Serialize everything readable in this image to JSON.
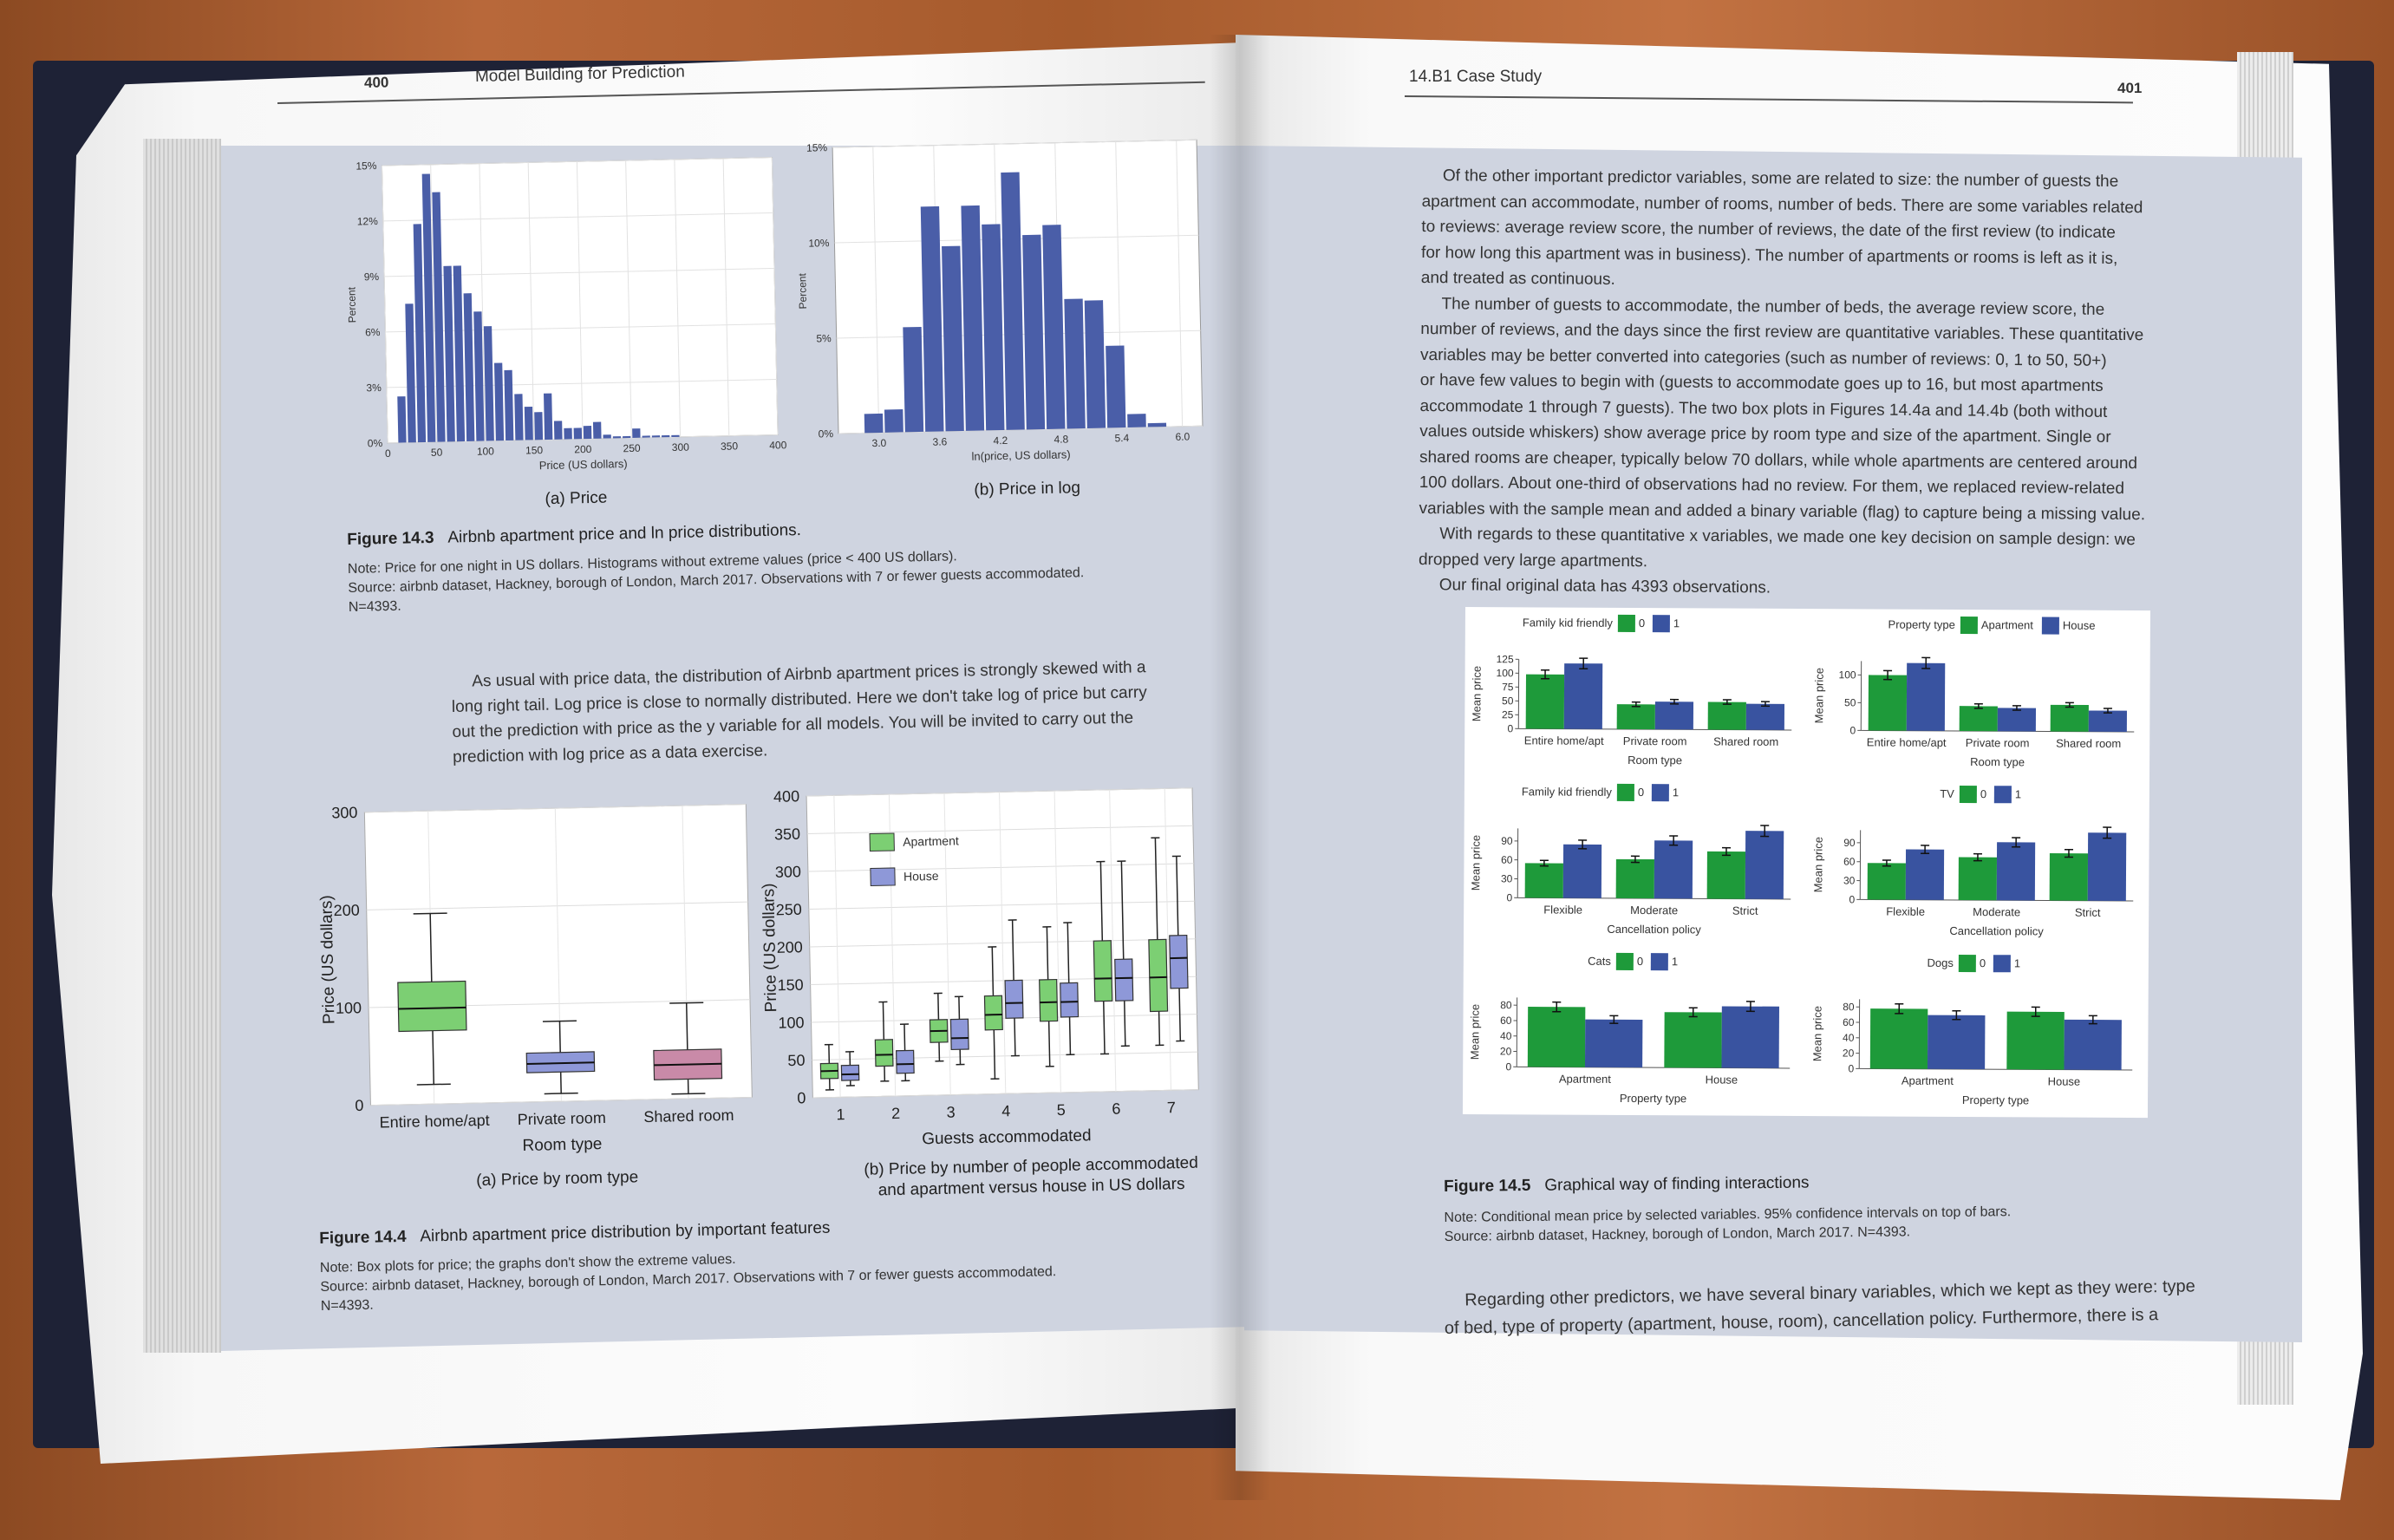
{
  "left_page": {
    "page_number": "400",
    "running_head": "Model Building for Prediction",
    "fig143_caption_label": "Figure 14.3",
    "fig143_caption": "Airbnb apartment price and ln price distributions.",
    "fig143_note": "Note: Price for one night in US dollars. Histograms without extreme values (price < 400 US dollars).",
    "fig143_source1": "Source: airbnb dataset, Hackney, borough of London, March 2017. Observations with 7 or fewer guests accommodated.",
    "fig143_source2": "N=4393.",
    "panel_a_label": "(a) Price",
    "panel_b_label": "(b) Price in log",
    "para_lines": [
      "As usual with price data, the distribution of Airbnb apartment prices is strongly skewed with a",
      "long right tail. Log price is close to normally distributed. Here we don't take log of price but carry",
      "out the prediction with price as the y variable for all models. You will be invited to carry out the",
      "prediction with log price as a data exercise."
    ],
    "fig144a_label": "(a) Price by room type",
    "fig144b_label1": "(b) Price by number of people accommodated",
    "fig144b_label2": "and apartment versus house in US dollars",
    "fig144_caption_label": "Figure 14.4",
    "fig144_caption": "Airbnb apartment price distribution by important features",
    "fig144_note": "Note: Box plots for price; the graphs don't show the extreme values.",
    "fig144_source1": "Source: airbnb dataset, Hackney, borough of London, March 2017. Observations with 7 or fewer guests accommodated.",
    "fig144_source2": "N=4393."
  },
  "right_page": {
    "page_number": "401",
    "running_head": "14.B1  Case Study",
    "para_lines": [
      "Of the other important predictor variables, some are related to size: the number of guests the",
      "apartment can accommodate, number of rooms, number of beds. There are some variables related",
      "to reviews: average review score, the number of reviews, the date of the first review (to indicate",
      "for how long this apartment was in business). The number of apartments or rooms is left as it is,",
      "and treated as continuous.",
      "The number of guests to accommodate, the number of beds, the average review score, the",
      "number of reviews, and the days since the first review are quantitative variables. These quantitative",
      "variables may be better converted into categories (such as number of reviews: 0, 1 to 50, 50+)",
      "or have few values to begin with (guests to accommodate goes up to 16, but most apartments",
      "accommodate 1 through 7 guests). The two box plots in Figures 14.4a and 14.4b (both without",
      "values outside whiskers) show average price by room type and size of the apartment. Single or",
      "shared rooms are cheaper, typically below 70 dollars, while whole apartments are centered around",
      "100 dollars. About one-third of observations had no review. For them, we replaced review-related",
      "variables with the sample mean and added a binary variable (flag) to capture being a missing value.",
      "With regards to these quantitative x variables, we made one key decision on sample design: we",
      "dropped very large apartments.",
      "Our final original data has 4393 observations."
    ],
    "fig145_caption_label": "Figure 14.5",
    "fig145_caption": "Graphical way of finding interactions",
    "fig145_note": "Note: Conditional mean price by selected variables. 95% confidence intervals on top of bars.",
    "fig145_source": "Source: airbnb dataset, Hackney, borough of London, March 2017. N=4393.",
    "bottom_lines": [
      "Regarding other predictors, we have several binary variables, which we kept as they were: type",
      "of bed, type of property (apartment, house, room), cancellation policy. Furthermore, there is a"
    ]
  },
  "colors": {
    "hist_bar": "#4a5ea8",
    "green": "#1e9a3a",
    "blue": "#3953a0",
    "box_green": "#7ccf73",
    "box_blue": "#8e98d8",
    "box_pink": "#c98aa8"
  },
  "chart_data": [
    {
      "type": "bar",
      "title": "",
      "xlabel": "Price (US dollars)",
      "ylabel": "Percent",
      "xlim": [
        0,
        400
      ],
      "ylim": [
        0,
        15
      ],
      "x_ticks": [
        "0",
        "50",
        "100",
        "150",
        "200",
        "250",
        "300",
        "350",
        "400"
      ],
      "y_ticks": [
        "0%",
        "3%",
        "6%",
        "9%",
        "12%",
        "15%"
      ],
      "bin_starts": [
        10,
        20,
        30,
        40,
        50,
        60,
        70,
        80,
        90,
        100,
        110,
        120,
        130,
        140,
        150,
        160,
        170,
        180,
        190,
        200,
        210,
        220,
        230,
        240,
        250,
        260,
        270,
        280,
        290
      ],
      "values": [
        2.5,
        7.5,
        11.8,
        14.5,
        13.5,
        9.5,
        9.5,
        8.0,
        7.0,
        6.2,
        4.2,
        3.8,
        2.5,
        1.8,
        1.5,
        2.5,
        1.0,
        0.6,
        0.6,
        0.7,
        0.9,
        0.2,
        0.1,
        0.1,
        0.5,
        0.1,
        0.1,
        0.1,
        0.1
      ]
    },
    {
      "type": "bar",
      "title": "",
      "xlabel": "ln(price, US dollars)",
      "ylabel": "Percent",
      "xlim": [
        2.6,
        6.2
      ],
      "ylim": [
        0,
        15
      ],
      "x_ticks": [
        "3.0",
        "3.6",
        "4.2",
        "4.8",
        "5.4",
        "6.0"
      ],
      "y_ticks": [
        "0%",
        "5%",
        "10%",
        "15%"
      ],
      "bin_starts": [
        2.85,
        3.05,
        3.25,
        3.45,
        3.65,
        3.85,
        4.05,
        4.25,
        4.45,
        4.65,
        4.85,
        5.05,
        5.25,
        5.45,
        5.65
      ],
      "values": [
        1.0,
        1.2,
        5.5,
        11.8,
        9.7,
        11.8,
        10.8,
        13.5,
        10.2,
        10.7,
        6.8,
        6.7,
        4.3,
        0.7,
        0.2
      ]
    },
    {
      "type": "box",
      "xlabel": "Room type",
      "ylabel": "Price (US dollars)",
      "ylim": [
        0,
        300
      ],
      "y_ticks": [
        "0",
        "100",
        "200",
        "300"
      ],
      "categories": [
        "Entire home/apt",
        "Private room",
        "Shared room"
      ],
      "boxes": [
        {
          "low": 20,
          "q1": 75,
          "median": 98,
          "q3": 125,
          "high": 195
        },
        {
          "low": 8,
          "q1": 30,
          "median": 39,
          "q3": 50,
          "high": 82
        },
        {
          "low": 5,
          "q1": 20,
          "median": 35,
          "q3": 50,
          "high": 98
        }
      ]
    },
    {
      "type": "box",
      "xlabel": "Guests accommodated",
      "ylabel": "Price (US dollars)",
      "ylim": [
        0,
        400
      ],
      "y_ticks": [
        "0",
        "50",
        "100",
        "150",
        "200",
        "250",
        "300",
        "350",
        "400"
      ],
      "categories": [
        "1",
        "2",
        "3",
        "4",
        "5",
        "6",
        "7"
      ],
      "legend": [
        "Apartment",
        "House"
      ],
      "apartment": [
        {
          "low": 10,
          "q1": 25,
          "median": 35,
          "q3": 45,
          "high": 70
        },
        {
          "low": 20,
          "q1": 40,
          "median": 55,
          "q3": 75,
          "high": 125
        },
        {
          "low": 45,
          "q1": 70,
          "median": 85,
          "q3": 100,
          "high": 135
        },
        {
          "low": 20,
          "q1": 85,
          "median": 105,
          "q3": 130,
          "high": 195
        },
        {
          "low": 35,
          "q1": 95,
          "median": 120,
          "q3": 150,
          "high": 220
        },
        {
          "low": 50,
          "q1": 120,
          "median": 150,
          "q3": 200,
          "high": 305
        },
        {
          "low": 60,
          "q1": 105,
          "median": 150,
          "q3": 200,
          "high": 335
        }
      ],
      "house": [
        {
          "low": 15,
          "q1": 22,
          "median": 30,
          "q3": 42,
          "high": 60
        },
        {
          "low": 20,
          "q1": 30,
          "median": 42,
          "q3": 60,
          "high": 95
        },
        {
          "low": 40,
          "q1": 60,
          "median": 75,
          "q3": 100,
          "high": 130
        },
        {
          "low": 50,
          "q1": 100,
          "median": 120,
          "q3": 150,
          "high": 230
        },
        {
          "low": 50,
          "q1": 100,
          "median": 120,
          "q3": 145,
          "high": 225
        },
        {
          "low": 60,
          "q1": 120,
          "median": 150,
          "q3": 175,
          "high": 305
        },
        {
          "low": 65,
          "q1": 135,
          "median": 175,
          "q3": 205,
          "high": 310
        }
      ]
    },
    {
      "type": "bar",
      "legend_title": "Family kid friendly",
      "legend": [
        "0",
        "1"
      ],
      "xlabel": "Room type",
      "ylabel": "Mean price",
      "ylim": [
        0,
        125
      ],
      "y_ticks": [
        "0",
        "25",
        "50",
        "75",
        "100",
        "125"
      ],
      "categories": [
        "Entire home/apt",
        "Private room",
        "Shared room"
      ],
      "series": [
        {
          "name": "0",
          "values": [
            98,
            45,
            50
          ]
        },
        {
          "name": "1",
          "values": [
            118,
            50,
            47
          ]
        }
      ]
    },
    {
      "type": "bar",
      "legend_title": "Property type",
      "legend": [
        "Apartment",
        "House"
      ],
      "xlabel": "Room type",
      "ylabel": "Mean price",
      "ylim": [
        0,
        125
      ],
      "y_ticks": [
        "0",
        "50",
        "100"
      ],
      "categories": [
        "Entire home/apt",
        "Private room",
        "Shared room"
      ],
      "series": [
        {
          "name": "Apartment",
          "values": [
            100,
            45,
            48
          ]
        },
        {
          "name": "House",
          "values": [
            122,
            42,
            38
          ]
        }
      ]
    },
    {
      "type": "bar",
      "legend_title": "Family kid friendly",
      "legend": [
        "0",
        "1"
      ],
      "xlabel": "Cancellation policy",
      "ylabel": "Mean price",
      "ylim": [
        0,
        110
      ],
      "y_ticks": [
        "0",
        "30",
        "60",
        "90"
      ],
      "categories": [
        "Flexible",
        "Moderate",
        "Strict"
      ],
      "series": [
        {
          "name": "0",
          "values": [
            55,
            62,
            75
          ]
        },
        {
          "name": "1",
          "values": [
            85,
            92,
            108
          ]
        }
      ]
    },
    {
      "type": "bar",
      "legend_title": "TV",
      "legend": [
        "0",
        "1"
      ],
      "xlabel": "Cancellation policy",
      "ylabel": "Mean price",
      "ylim": [
        0,
        110
      ],
      "y_ticks": [
        "0",
        "30",
        "60",
        "90"
      ],
      "categories": [
        "Flexible",
        "Moderate",
        "Strict"
      ],
      "series": [
        {
          "name": "0",
          "values": [
            58,
            68,
            75
          ]
        },
        {
          "name": "1",
          "values": [
            80,
            92,
            108
          ]
        }
      ]
    },
    {
      "type": "bar",
      "legend_title": "Cats",
      "legend": [
        "0",
        "1"
      ],
      "xlabel": "Property type",
      "ylabel": "Mean price",
      "ylim": [
        0,
        90
      ],
      "y_ticks": [
        "0",
        "20",
        "40",
        "60",
        "80"
      ],
      "categories": [
        "Apartment",
        "House"
      ],
      "series": [
        {
          "name": "0",
          "values": [
            78,
            72
          ]
        },
        {
          "name": "1",
          "values": [
            62,
            80
          ]
        }
      ]
    },
    {
      "type": "bar",
      "legend_title": "Dogs",
      "legend": [
        "0",
        "1"
      ],
      "xlabel": "Property type",
      "ylabel": "Mean price",
      "ylim": [
        0,
        90
      ],
      "y_ticks": [
        "0",
        "20",
        "40",
        "60",
        "80"
      ],
      "categories": [
        "Apartment",
        "House"
      ],
      "series": [
        {
          "name": "0",
          "values": [
            78,
            75
          ]
        },
        {
          "name": "1",
          "values": [
            70,
            65
          ]
        }
      ]
    }
  ]
}
